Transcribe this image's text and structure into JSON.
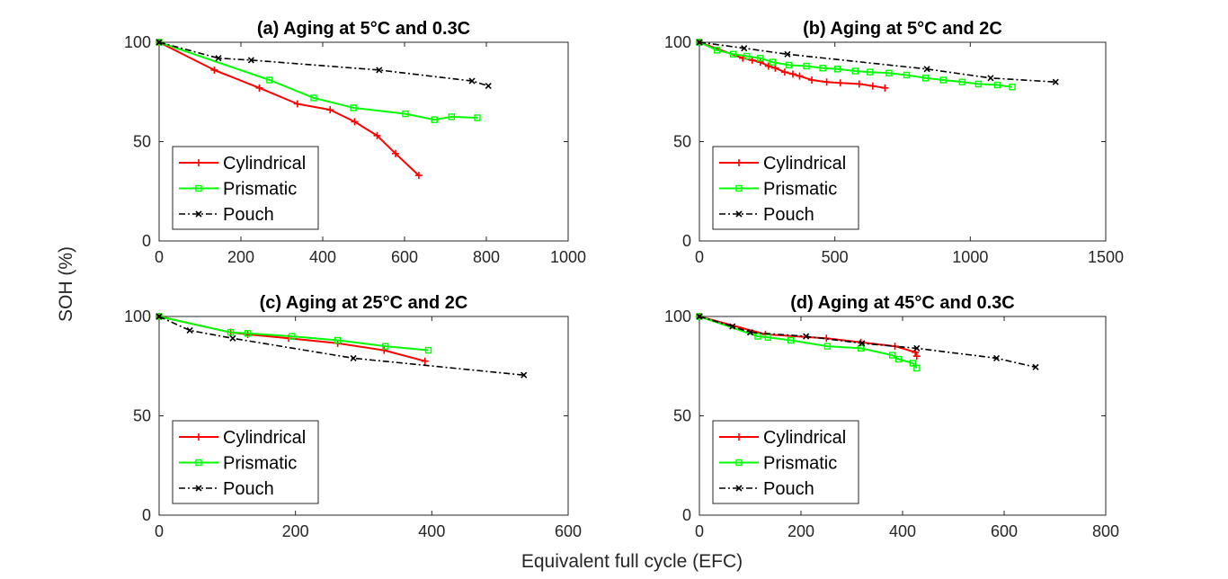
{
  "figure": {
    "ylabel": "SOH (%)",
    "xlabel": "Equivalent full cycle (EFC)"
  },
  "colors": {
    "Cylindrical": "#ff0000",
    "Prismatic": "#00ff00",
    "Pouch": "#000000"
  },
  "chart_data": [
    {
      "type": "line",
      "title": "(a) Aging at 5°C and 0.3C",
      "xlim": [
        0,
        1000
      ],
      "ylim": [
        0,
        100
      ],
      "xticks": [
        0,
        200,
        400,
        600,
        800,
        1000
      ],
      "yticks": [
        0,
        50,
        100
      ],
      "legend": "bottom-left",
      "series": [
        {
          "name": "Cylindrical",
          "marker": "plus",
          "style": "solid",
          "x": [
            0,
            135,
            245,
            338,
            418,
            478,
            533,
            578,
            635
          ],
          "y": [
            100,
            86,
            77,
            69,
            66,
            60,
            53,
            44,
            33
          ]
        },
        {
          "name": "Prismatic",
          "marker": "square",
          "style": "solid",
          "x": [
            0,
            270,
            378,
            475,
            602,
            673,
            715,
            778
          ],
          "y": [
            100,
            81,
            72,
            67,
            64,
            61,
            62.5,
            62
          ]
        },
        {
          "name": "Pouch",
          "marker": "x",
          "style": "dashdot",
          "x": [
            0,
            145,
            225,
            538,
            765,
            805
          ],
          "y": [
            100,
            92,
            91,
            86,
            80.5,
            78
          ]
        }
      ]
    },
    {
      "type": "line",
      "title": "(b) Aging at 5°C and 2C",
      "xlim": [
        0,
        1500
      ],
      "ylim": [
        0,
        100
      ],
      "xticks": [
        0,
        500,
        1000,
        1500
      ],
      "yticks": [
        0,
        50,
        100
      ],
      "legend": "bottom-left",
      "series": [
        {
          "name": "Cylindrical",
          "marker": "plus",
          "style": "solid",
          "x": [
            0,
            160,
            195,
            225,
            255,
            280,
            315,
            345,
            370,
            415,
            470,
            520,
            590,
            640,
            685
          ],
          "y": [
            100,
            92,
            91,
            90,
            88,
            87,
            85,
            84,
            83,
            81,
            80,
            79.5,
            79,
            78,
            77
          ]
        },
        {
          "name": "Prismatic",
          "marker": "square",
          "style": "solid",
          "x": [
            0,
            65,
            125,
            175,
            225,
            270,
            330,
            395,
            455,
            510,
            575,
            630,
            700,
            765,
            835,
            900,
            970,
            1030,
            1100,
            1155
          ],
          "y": [
            100,
            96,
            94,
            93,
            92,
            90,
            88.5,
            88,
            87,
            86.5,
            85.5,
            85,
            84.5,
            83.5,
            82,
            81,
            80,
            79,
            78.5,
            77.5
          ]
        },
        {
          "name": "Pouch",
          "marker": "x",
          "style": "dashdot",
          "x": [
            0,
            165,
            325,
            840,
            1075,
            1315
          ],
          "y": [
            100,
            97,
            94,
            86.5,
            82,
            80
          ]
        }
      ]
    },
    {
      "type": "line",
      "title": "(c) Aging at 25°C and 2C",
      "xlim": [
        0,
        600
      ],
      "ylim": [
        0,
        100
      ],
      "xticks": [
        0,
        200,
        400,
        600
      ],
      "yticks": [
        0,
        50,
        100
      ],
      "legend": "bottom-left",
      "series": [
        {
          "name": "Cylindrical",
          "marker": "plus",
          "style": "solid",
          "x": [
            0,
            105,
            130,
            190,
            262,
            330,
            390
          ],
          "y": [
            100,
            92,
            91,
            89,
            86.5,
            83,
            77.5
          ]
        },
        {
          "name": "Prismatic",
          "marker": "square",
          "style": "solid",
          "x": [
            0,
            105,
            130,
            195,
            262,
            332,
            395
          ],
          "y": [
            100,
            92,
            91.5,
            90,
            88,
            85,
            83
          ]
        },
        {
          "name": "Pouch",
          "marker": "x",
          "style": "dashdot",
          "x": [
            0,
            45,
            108,
            285,
            535
          ],
          "y": [
            100,
            93,
            89,
            79,
            70.5
          ]
        }
      ]
    },
    {
      "type": "line",
      "title": "(d) Aging at 45°C and 0.3C",
      "xlim": [
        0,
        800
      ],
      "ylim": [
        0,
        100
      ],
      "xticks": [
        0,
        200,
        400,
        600,
        800
      ],
      "yticks": [
        0,
        50,
        100
      ],
      "legend": "bottom-left",
      "series": [
        {
          "name": "Cylindrical",
          "marker": "plus",
          "style": "solid",
          "x": [
            0,
            130,
            250,
            318,
            385,
            425,
            428
          ],
          "y": [
            100,
            91,
            89,
            87,
            85,
            82,
            80
          ]
        },
        {
          "name": "Prismatic",
          "marker": "square",
          "style": "solid",
          "x": [
            0,
            115,
            135,
            180,
            252,
            318,
            380,
            392,
            420,
            428
          ],
          "y": [
            100,
            90,
            89.5,
            88,
            85,
            84,
            80.5,
            78.5,
            76.5,
            74
          ]
        },
        {
          "name": "Pouch",
          "marker": "x",
          "style": "dashdot",
          "x": [
            0,
            65,
            100,
            210,
            320,
            428,
            585,
            662
          ],
          "y": [
            100,
            95,
            92,
            90,
            86.5,
            84,
            79,
            74.5
          ]
        }
      ]
    }
  ]
}
